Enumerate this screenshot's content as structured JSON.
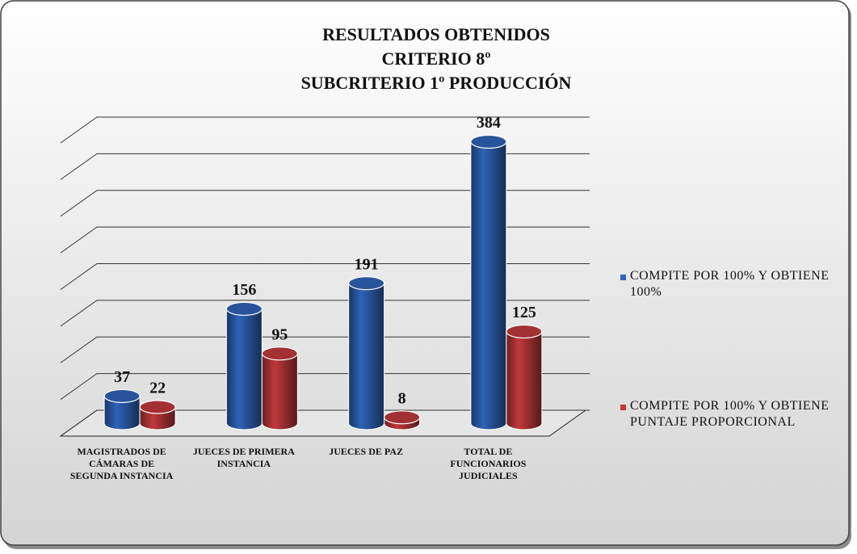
{
  "chart_data": {
    "type": "bar3d",
    "title": [
      "RESULTADOS OBTENIDOS",
      "CRITERIO 8º",
      "SUBCRITERIO 1º PRODUCCIÓN"
    ],
    "categories": [
      "MAGISTRADOS DE CÁMARAS DE SEGUNDA INSTANCIA",
      "JUECES DE PRIMERA INSTANCIA",
      "JUECES DE PAZ",
      "TOTAL DE FUNCIONARIOS JUDICIALES"
    ],
    "series": [
      {
        "name": "COMPITE POR 100% Y OBTIENE 100%",
        "color": "#2f63b8",
        "values": [
          37,
          156,
          191,
          384
        ]
      },
      {
        "name": "COMPITE POR 100% Y OBTIENE PUNTAJE PROPORCIONAL",
        "color": "#c0393b",
        "values": [
          22,
          95,
          8,
          125
        ]
      }
    ],
    "ylim": [
      0,
      400
    ],
    "yticks": [
      0,
      50,
      100,
      150,
      200,
      250,
      300,
      350,
      400
    ],
    "grid": true,
    "legend": "right"
  }
}
